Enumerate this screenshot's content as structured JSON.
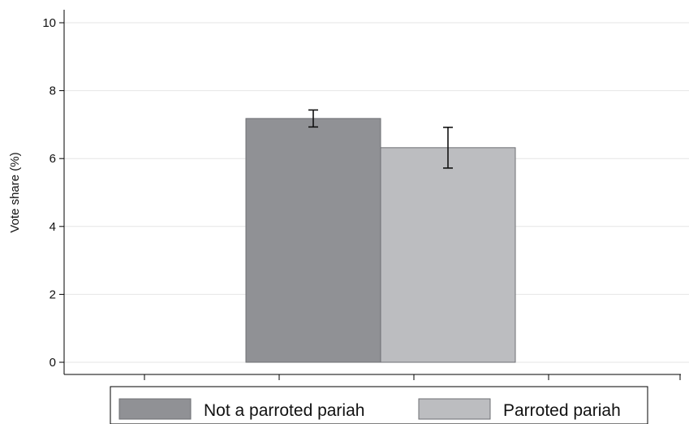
{
  "chart_data": {
    "type": "bar",
    "title": "",
    "xlabel": "",
    "ylabel": "Vote share (%)",
    "ylim": [
      0,
      10
    ],
    "yticks": [
      0,
      2,
      4,
      6,
      8,
      10
    ],
    "grid": true,
    "legend_position": "bottom",
    "series": [
      {
        "name": "Not a parroted pariah",
        "value": 7.18,
        "ci_low": 6.93,
        "ci_high": 7.43,
        "color": "#909195"
      },
      {
        "name": "Parroted pariah",
        "value": 6.32,
        "ci_low": 5.72,
        "ci_high": 6.92,
        "color": "#bcbdc0"
      }
    ]
  }
}
